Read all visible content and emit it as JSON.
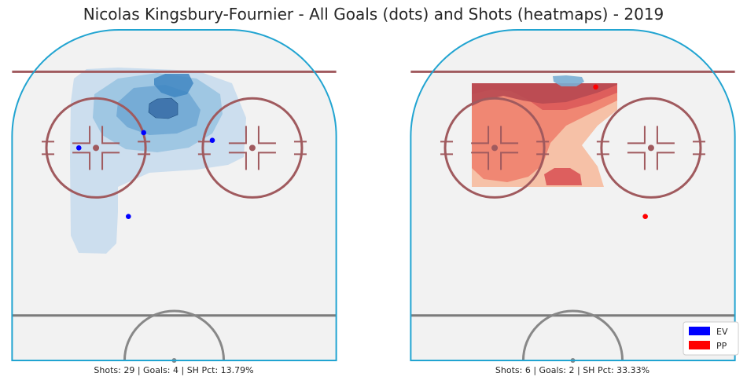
{
  "chart_data": {
    "type": "scatter",
    "title": "Nicolas Kingsbury-Fournier - All Goals (dots) and Shots (heatmaps) - 2019",
    "panels": [
      {
        "strength": "EV",
        "stats": "Shots: 29 | Goals: 4 | SH Pct: 13.79%",
        "goals": [
          {
            "x": -25,
            "y": 69
          },
          {
            "x": -8,
            "y": 73
          },
          {
            "x": 10,
            "y": 71
          },
          {
            "x": -12,
            "y": 51
          }
        ]
      },
      {
        "strength": "PP",
        "stats": "Shots: 6 | Goals: 2 | SH Pct: 33.33%",
        "goals": [
          {
            "x": 6,
            "y": 85
          },
          {
            "x": 19,
            "y": 51
          }
        ]
      }
    ],
    "legend": [
      {
        "label": "EV",
        "color": "#0000ff"
      },
      {
        "label": "PP",
        "color": "#ff0000"
      }
    ],
    "legend_placement": "lower-right"
  }
}
